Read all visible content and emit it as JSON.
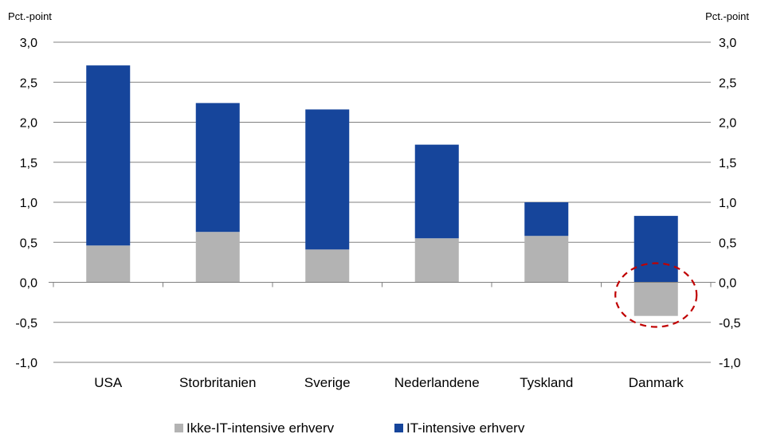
{
  "chart_data": {
    "type": "bar",
    "stacked": true,
    "categories": [
      "USA",
      "Storbritanien",
      "Sverige",
      "Nederlandene",
      "Tyskland",
      "Danmark"
    ],
    "series": [
      {
        "name": "Ikke-IT-intensive erhverv",
        "color": "#b3b3b3",
        "values": [
          0.46,
          0.63,
          0.41,
          0.55,
          0.58,
          -0.42
        ]
      },
      {
        "name": "IT-intensive erhverv",
        "color": "#16459b",
        "values": [
          2.25,
          1.61,
          1.75,
          1.17,
          0.42,
          0.83
        ]
      }
    ],
    "ylabel_left": "Pct.-point",
    "ylabel_right": "Pct.-point",
    "ylim": [
      -1.0,
      3.0
    ],
    "yticks_left": [
      "3,0",
      "2,5",
      "2,0",
      "1,5",
      "1,0",
      "0,5",
      "0,0",
      "-0,5",
      "-1,0"
    ],
    "yticks_right": [
      "3,0",
      "2,5",
      "2,0",
      "1,5",
      "1,0",
      "0,5",
      "0,0",
      "-0,5",
      "-1,0"
    ],
    "ytick_values": [
      3.0,
      2.5,
      2.0,
      1.5,
      1.0,
      0.5,
      0.0,
      -0.5,
      -1.0
    ],
    "grid": true,
    "legend_position": "bottom-center",
    "annotation": {
      "type": "dashed-ellipse",
      "category": "Danmark",
      "color": "#c00000"
    }
  }
}
